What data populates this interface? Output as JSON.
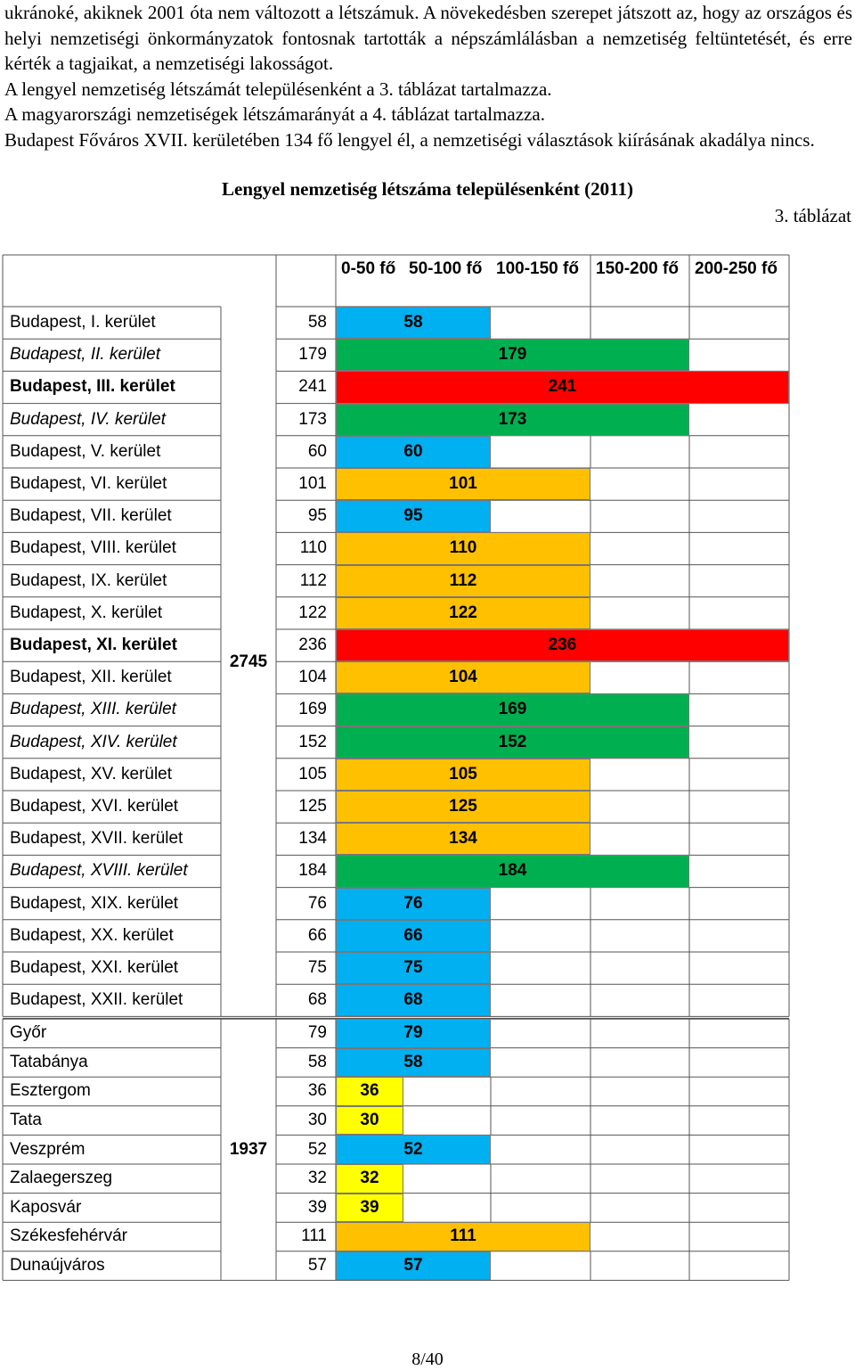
{
  "paragraphs": [
    "ukránoké, akiknek 2001 óta nem változott a létszámuk. A növekedésben szerepet játszott az, hogy az országos és helyi nemzetiségi önkormányzatok fontosnak tartották a népszámlálásban a nemzetiség feltüntetését, és erre kérték a tagjaikat, a nemzetiségi lakosságot.",
    "A lengyel nemzetiség létszámát településenként a 3. táblázat tartalmazza.",
    "A magyarországi nemzetiségek létszámarányát a 4. táblázat tartalmazza.",
    "Budapest Főváros XVII. kerületében 134 fő lengyel él, a nemzetiségi választások kiírásának akadálya nincs."
  ],
  "table_title": "Lengyel nemzetiség létszáma településenként (2011)",
  "table_number": "3. táblázat",
  "headers": [
    "0-50 fő",
    "50-100 fő",
    "100-150 fő",
    "150-200 fő",
    "200-250 fő"
  ],
  "group_totals": {
    "budapest": "2745",
    "others": "1937"
  },
  "colors": {
    "blue": "#00b0f0",
    "green": "#00b050",
    "red": "#ff0000",
    "orange": "#ffc000",
    "yellow": "#ffff00"
  },
  "chart_data": {
    "type": "table",
    "rows": [
      {
        "name": "Budapest, I. kerület",
        "value": 58,
        "style": "normal"
      },
      {
        "name": "Budapest, II. kerület",
        "value": 179,
        "style": "italic"
      },
      {
        "name": "Budapest, III. kerület",
        "value": 241,
        "style": "bold"
      },
      {
        "name": "Budapest, IV. kerület",
        "value": 173,
        "style": "italic"
      },
      {
        "name": "Budapest, V. kerület",
        "value": 60,
        "style": "normal"
      },
      {
        "name": "Budapest, VI. kerület",
        "value": 101,
        "style": "normal"
      },
      {
        "name": "Budapest, VII. kerület",
        "value": 95,
        "style": "normal"
      },
      {
        "name": "Budapest, VIII. kerület",
        "value": 110,
        "style": "normal"
      },
      {
        "name": "Budapest, IX. kerület",
        "value": 112,
        "style": "normal"
      },
      {
        "name": "Budapest, X. kerület",
        "value": 122,
        "style": "normal"
      },
      {
        "name": "Budapest, XI. kerület",
        "value": 236,
        "style": "bold"
      },
      {
        "name": "Budapest, XII. kerület",
        "value": 104,
        "style": "normal"
      },
      {
        "name": "Budapest, XIII. kerület",
        "value": 169,
        "style": "italic"
      },
      {
        "name": "Budapest, XIV. kerület",
        "value": 152,
        "style": "italic"
      },
      {
        "name": "Budapest, XV. kerület",
        "value": 105,
        "style": "normal"
      },
      {
        "name": "Budapest, XVI. kerület",
        "value": 125,
        "style": "normal"
      },
      {
        "name": "Budapest, XVII. kerület",
        "value": 134,
        "style": "normal"
      },
      {
        "name": "Budapest, XVIII. kerület",
        "value": 184,
        "style": "italic"
      },
      {
        "name": "Budapest, XIX. kerület",
        "value": 76,
        "style": "normal"
      },
      {
        "name": "Budapest, XX. kerület",
        "value": 66,
        "style": "normal"
      },
      {
        "name": "Budapest, XXI. kerület",
        "value": 75,
        "style": "normal"
      },
      {
        "name": "Budapest, XXII. kerület",
        "value": 68,
        "style": "normal"
      },
      {
        "name": "Győr",
        "value": 79,
        "style": "normal"
      },
      {
        "name": "Tatabánya",
        "value": 58,
        "style": "normal"
      },
      {
        "name": "Esztergom",
        "value": 36,
        "style": "normal"
      },
      {
        "name": "Tata",
        "value": 30,
        "style": "normal"
      },
      {
        "name": "Veszprém",
        "value": 52,
        "style": "normal"
      },
      {
        "name": "Zalaegerszeg",
        "value": 32,
        "style": "normal"
      },
      {
        "name": "Kaposvár",
        "value": 39,
        "style": "normal"
      },
      {
        "name": "Székesfehérvár",
        "value": 111,
        "style": "normal"
      },
      {
        "name": "Dunaújváros",
        "value": 57,
        "style": "normal"
      }
    ]
  },
  "page_number": "8/40"
}
